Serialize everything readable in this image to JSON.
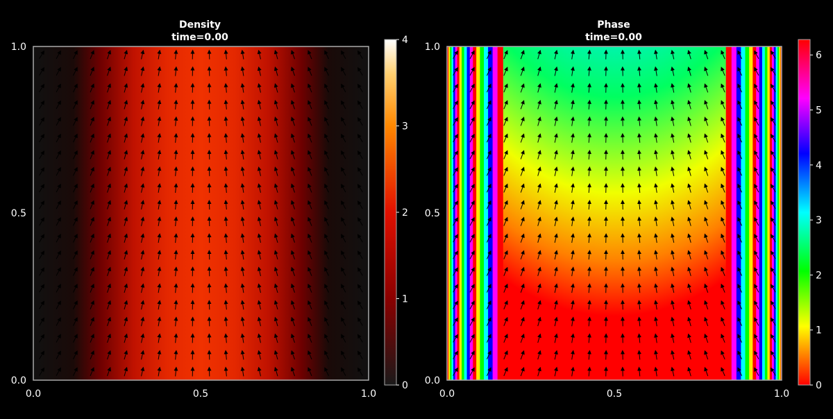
{
  "chart_data": [
    {
      "type": "heatmap",
      "title": "Density",
      "subtitle": "time=0.00",
      "xlim": [
        0.0,
        1.0
      ],
      "ylim": [
        0.0,
        1.0
      ],
      "x_ticks": [
        "0.0",
        "0.5",
        "1.0"
      ],
      "y_ticks": [
        "0.0",
        "0.5",
        "1.0"
      ],
      "colorbar": {
        "range": [
          0,
          4
        ],
        "ticks": [
          "0",
          "1",
          "2",
          "3",
          "4"
        ],
        "colormap": "gist_heat"
      },
      "field_profile_x": [
        0.0,
        0.1,
        0.2,
        0.3,
        0.4,
        0.5,
        0.6,
        0.7,
        0.8,
        0.9,
        1.0
      ],
      "field_profile_values": [
        0.2,
        0.2,
        0.9,
        1.6,
        2.0,
        2.1,
        2.0,
        1.6,
        0.9,
        0.2,
        0.2
      ],
      "overlay": "velocity-arrows",
      "background": "#000000"
    },
    {
      "type": "heatmap",
      "title": "Phase",
      "subtitle": "time=0.00",
      "xlim": [
        0.0,
        1.0
      ],
      "ylim": [
        0.0,
        1.0
      ],
      "x_ticks": [
        "0.0",
        "0.5",
        "1.0"
      ],
      "y_ticks": [
        "0.0",
        "0.5",
        "1.0"
      ],
      "colorbar": {
        "range": [
          0,
          6.28
        ],
        "ticks": [
          "0",
          "1",
          "2",
          "3",
          "4",
          "5",
          "6"
        ],
        "colormap": "hsv"
      },
      "overlay": "velocity-arrows",
      "background": "#000000"
    }
  ]
}
